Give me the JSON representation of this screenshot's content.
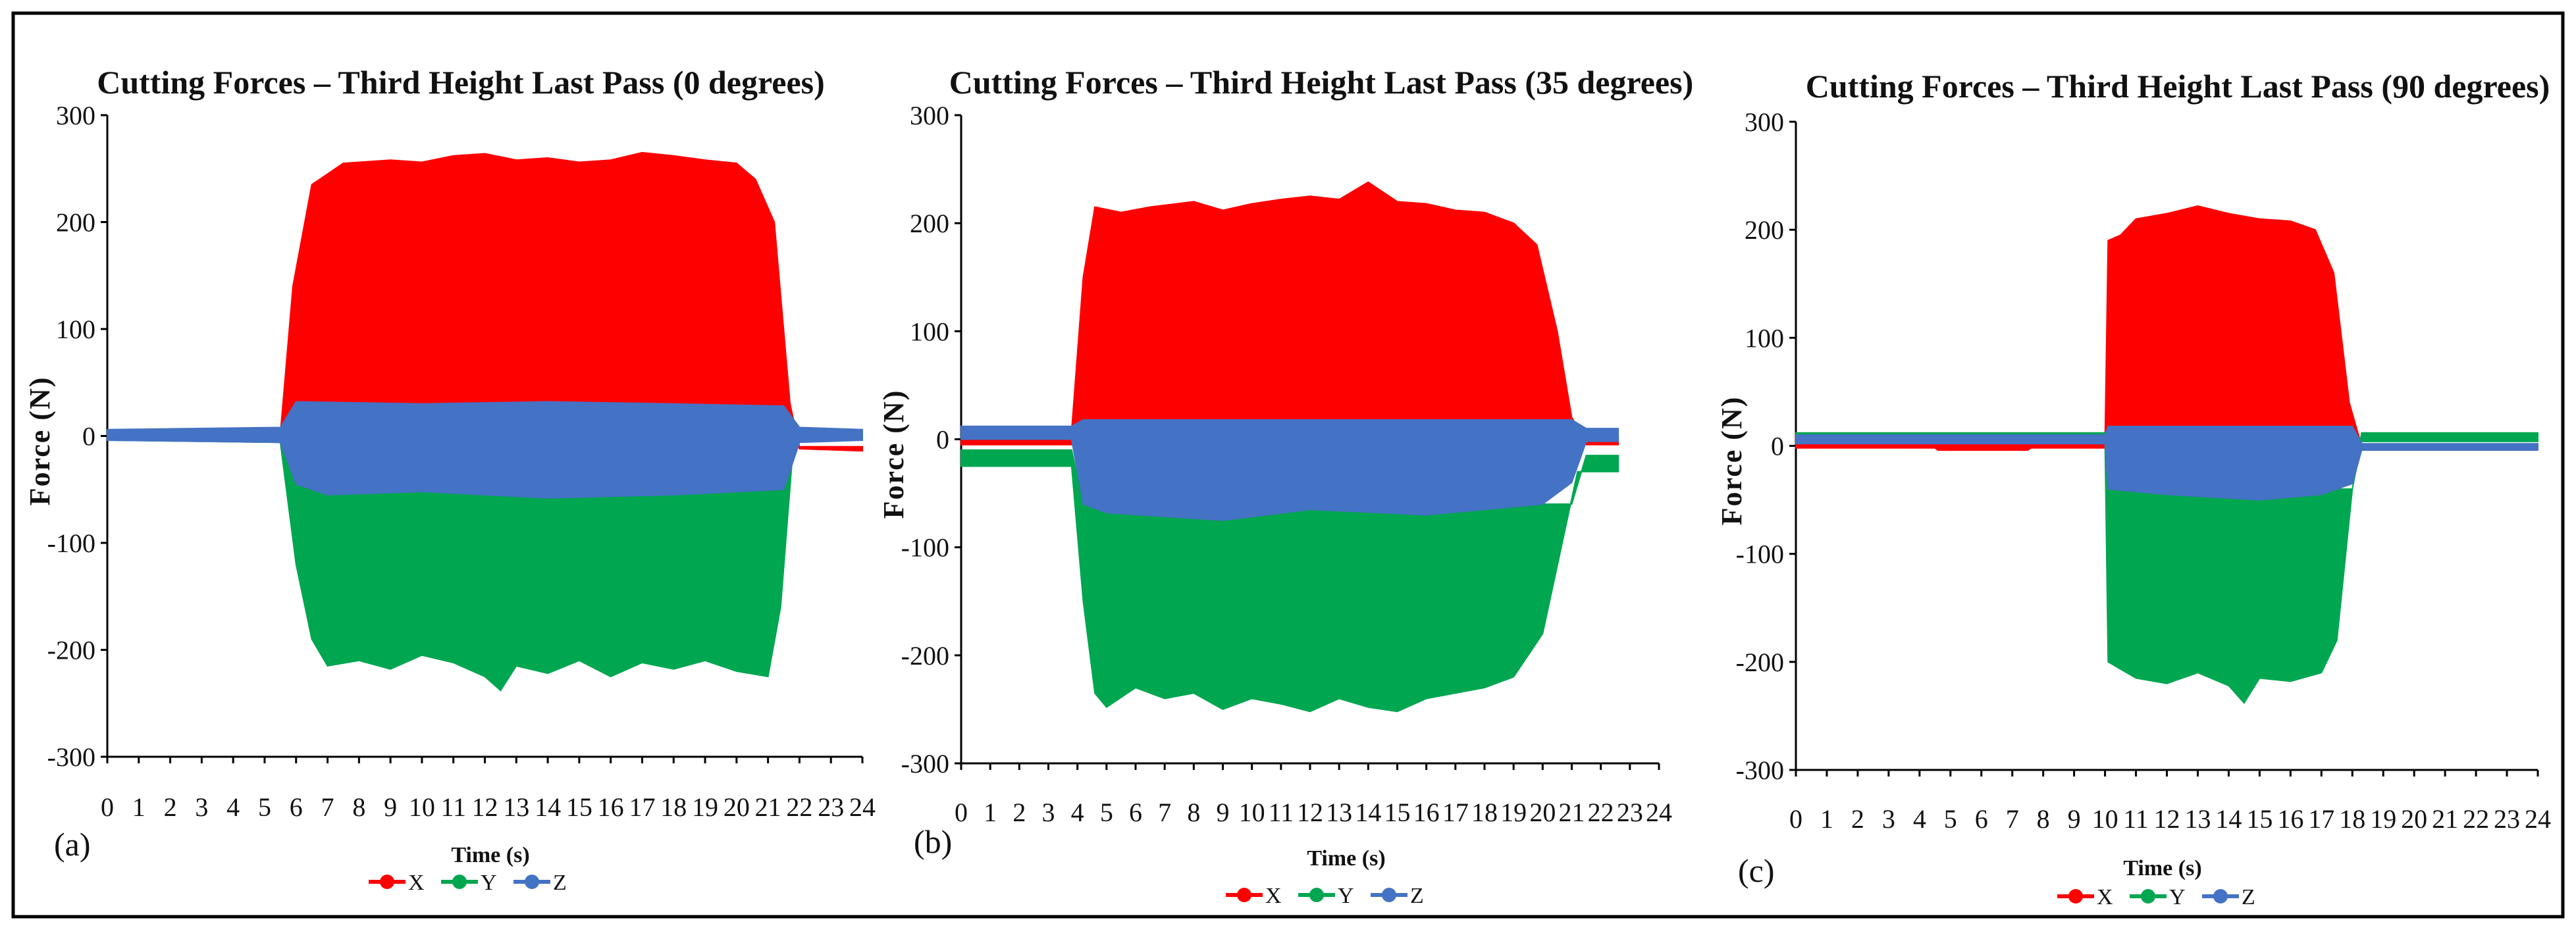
{
  "figure": {
    "colors": {
      "X": "#ff0000",
      "Y": "#00a650",
      "Z": "#4472c4",
      "frame": "#000000"
    }
  },
  "chart_data": [
    {
      "type": "area",
      "panel_label": "(a)",
      "title": "Cutting Forces – Third Height Last Pass (0 degrees)",
      "xlabel": "Time (s)",
      "ylabel": "Force (N)",
      "xlim": [
        0,
        24
      ],
      "ylim": [
        -300,
        300
      ],
      "xticks": [
        "0",
        "1",
        "2",
        "3",
        "4",
        "5",
        "6",
        "7",
        "8",
        "9",
        "10",
        "11",
        "12",
        "13",
        "14",
        "15",
        "16",
        "17",
        "18",
        "19",
        "20",
        "21",
        "22",
        "23",
        "24"
      ],
      "yticks": [
        "300",
        "200",
        "100",
        "0",
        "-100",
        "-200",
        "-300"
      ],
      "legend": [
        "X",
        "Y",
        "Z"
      ],
      "grid": false,
      "series": [
        {
          "name": "X",
          "upper": [
            [
              0,
              2
            ],
            [
              5.5,
              2
            ],
            [
              5.9,
              140
            ],
            [
              6.5,
              235
            ],
            [
              7.5,
              255
            ],
            [
              9,
              258
            ],
            [
              10,
              256
            ],
            [
              11,
              262
            ],
            [
              12,
              264
            ],
            [
              13,
              258
            ],
            [
              14,
              260
            ],
            [
              15,
              256
            ],
            [
              16,
              258
            ],
            [
              17,
              265
            ],
            [
              18,
              262
            ],
            [
              19,
              258
            ],
            [
              20,
              255
            ],
            [
              20.6,
              240
            ],
            [
              21.2,
              200
            ],
            [
              21.7,
              30
            ],
            [
              22,
              -10
            ],
            [
              24,
              -10
            ]
          ],
          "lower": [
            [
              0,
              -2
            ],
            [
              5.5,
              -6
            ],
            [
              6,
              20
            ],
            [
              21.5,
              20
            ],
            [
              22,
              -12
            ],
            [
              24,
              -14
            ]
          ]
        },
        {
          "name": "Y",
          "upper": [
            [
              0,
              2
            ],
            [
              5.5,
              2
            ],
            [
              6,
              -40
            ],
            [
              21.5,
              -40
            ],
            [
              22,
              2
            ],
            [
              24,
              2
            ]
          ],
          "lower": [
            [
              0,
              -4
            ],
            [
              5.5,
              -6
            ],
            [
              6,
              -120
            ],
            [
              6.5,
              -190
            ],
            [
              7,
              -215
            ],
            [
              8,
              -210
            ],
            [
              9,
              -218
            ],
            [
              10,
              -205
            ],
            [
              11,
              -212
            ],
            [
              12,
              -225
            ],
            [
              12.5,
              -238
            ],
            [
              13,
              -215
            ],
            [
              14,
              -222
            ],
            [
              15,
              -210
            ],
            [
              16,
              -225
            ],
            [
              17,
              -212
            ],
            [
              18,
              -218
            ],
            [
              19,
              -210
            ],
            [
              20,
              -220
            ],
            [
              21,
              -225
            ],
            [
              21.4,
              -160
            ],
            [
              21.8,
              -10
            ],
            [
              22,
              -4
            ],
            [
              24,
              -4
            ]
          ]
        },
        {
          "name": "Z",
          "upper": [
            [
              0,
              6
            ],
            [
              5.5,
              8
            ],
            [
              6,
              32
            ],
            [
              10,
              30
            ],
            [
              14,
              32
            ],
            [
              18,
              30
            ],
            [
              21.5,
              28
            ],
            [
              22,
              8
            ],
            [
              24,
              6
            ]
          ],
          "lower": [
            [
              0,
              -4
            ],
            [
              5.5,
              -6
            ],
            [
              6,
              -45
            ],
            [
              7,
              -55
            ],
            [
              10,
              -52
            ],
            [
              14,
              -58
            ],
            [
              18,
              -55
            ],
            [
              21.5,
              -50
            ],
            [
              22,
              -6
            ],
            [
              24,
              -4
            ]
          ]
        }
      ]
    },
    {
      "type": "area",
      "panel_label": "(b)",
      "title": "Cutting Forces – Third Height Last Pass (35 degrees)",
      "xlabel": "Time (s)",
      "ylabel": "Force (N)",
      "xlim": [
        0,
        24
      ],
      "ylim": [
        -300,
        300
      ],
      "xticks": [
        "0",
        "1",
        "2",
        "3",
        "4",
        "5",
        "6",
        "7",
        "8",
        "9",
        "10",
        "11",
        "12",
        "13",
        "14",
        "15",
        "16",
        "17",
        "18",
        "19",
        "20",
        "21",
        "22",
        "23",
        "24"
      ],
      "yticks": [
        "300",
        "200",
        "100",
        "0",
        "-100",
        "-200",
        "-300"
      ],
      "legend": [
        "X",
        "Y",
        "Z"
      ],
      "grid": false,
      "series": [
        {
          "name": "X",
          "upper": [
            [
              0,
              8
            ],
            [
              3.8,
              8
            ],
            [
              4.2,
              150
            ],
            [
              4.6,
              215
            ],
            [
              5.5,
              210
            ],
            [
              6.5,
              215
            ],
            [
              8,
              220
            ],
            [
              9,
              212
            ],
            [
              10,
              218
            ],
            [
              11,
              222
            ],
            [
              12,
              225
            ],
            [
              13,
              222
            ],
            [
              14,
              238
            ],
            [
              15,
              220
            ],
            [
              16,
              218
            ],
            [
              17,
              212
            ],
            [
              18,
              210
            ],
            [
              19,
              200
            ],
            [
              19.8,
              180
            ],
            [
              20.5,
              100
            ],
            [
              21,
              20
            ],
            [
              21.5,
              0
            ],
            [
              22.6,
              0
            ]
          ],
          "lower": [
            [
              0,
              -5
            ],
            [
              3.8,
              -5
            ],
            [
              4.2,
              15
            ],
            [
              21,
              15
            ],
            [
              21.5,
              -5
            ],
            [
              22.6,
              -5
            ]
          ]
        },
        {
          "name": "Y",
          "upper": [
            [
              0,
              -10
            ],
            [
              3.8,
              -10
            ],
            [
              4.2,
              -60
            ],
            [
              21,
              -60
            ],
            [
              21.5,
              -15
            ],
            [
              22.6,
              -15
            ]
          ],
          "lower": [
            [
              0,
              -25
            ],
            [
              3.8,
              -25
            ],
            [
              4.2,
              -150
            ],
            [
              4.6,
              -235
            ],
            [
              5,
              -248
            ],
            [
              6,
              -230
            ],
            [
              7,
              -240
            ],
            [
              8,
              -235
            ],
            [
              9,
              -250
            ],
            [
              10,
              -240
            ],
            [
              11,
              -245
            ],
            [
              12,
              -252
            ],
            [
              13,
              -240
            ],
            [
              14,
              -248
            ],
            [
              15,
              -252
            ],
            [
              16,
              -240
            ],
            [
              17,
              -235
            ],
            [
              18,
              -230
            ],
            [
              19,
              -220
            ],
            [
              20,
              -180
            ],
            [
              20.8,
              -80
            ],
            [
              21.2,
              -30
            ],
            [
              22.6,
              -30
            ]
          ]
        },
        {
          "name": "Z",
          "upper": [
            [
              0,
              12
            ],
            [
              3.8,
              12
            ],
            [
              4.2,
              18
            ],
            [
              21,
              18
            ],
            [
              21.5,
              10
            ],
            [
              22.6,
              10
            ]
          ],
          "lower": [
            [
              0,
              0
            ],
            [
              3.8,
              0
            ],
            [
              4.2,
              -60
            ],
            [
              5,
              -68
            ],
            [
              9,
              -75
            ],
            [
              12,
              -65
            ],
            [
              16,
              -70
            ],
            [
              20,
              -60
            ],
            [
              21,
              -40
            ],
            [
              21.5,
              -2
            ],
            [
              22.6,
              -2
            ]
          ]
        }
      ]
    },
    {
      "type": "area",
      "panel_label": "(c)",
      "title": "Cutting Forces – Third Height Last Pass (90 degrees)",
      "xlabel": "Time (s)",
      "ylabel": "Force (N)",
      "xlim": [
        0,
        24
      ],
      "ylim": [
        -300,
        300
      ],
      "xticks": [
        "0",
        "1",
        "2",
        "3",
        "4",
        "5",
        "6",
        "7",
        "8",
        "9",
        "10",
        "11",
        "12",
        "13",
        "14",
        "15",
        "16",
        "17",
        "18",
        "19",
        "20",
        "21",
        "22",
        "23",
        "24"
      ],
      "yticks": [
        "300",
        "200",
        "100",
        "0",
        "-100",
        "-200",
        "-300"
      ],
      "legend": [
        "X",
        "Y",
        "Z"
      ],
      "grid": false,
      "series": [
        {
          "name": "X",
          "upper": [
            [
              0,
              5
            ],
            [
              10,
              5
            ],
            [
              10.1,
              190
            ],
            [
              10.5,
              195
            ],
            [
              11,
              210
            ],
            [
              12,
              215
            ],
            [
              13,
              222
            ],
            [
              14,
              215
            ],
            [
              15,
              210
            ],
            [
              16,
              208
            ],
            [
              16.8,
              200
            ],
            [
              17.4,
              160
            ],
            [
              17.9,
              40
            ],
            [
              18.3,
              0
            ],
            [
              24,
              0
            ]
          ],
          "lower": [
            [
              0,
              -2
            ],
            [
              4.5,
              -2
            ],
            [
              4.6,
              -4
            ],
            [
              7.5,
              -4
            ],
            [
              7.6,
              -2
            ],
            [
              10,
              -2
            ],
            [
              10.1,
              15
            ],
            [
              18,
              15
            ],
            [
              18.3,
              -2
            ],
            [
              24,
              -2
            ]
          ]
        },
        {
          "name": "Y",
          "upper": [
            [
              0,
              12
            ],
            [
              10,
              12
            ],
            [
              10.1,
              -40
            ],
            [
              18,
              -40
            ],
            [
              18.3,
              12
            ],
            [
              24,
              12
            ]
          ],
          "lower": [
            [
              0,
              4
            ],
            [
              10,
              4
            ],
            [
              10.1,
              -200
            ],
            [
              11,
              -215
            ],
            [
              12,
              -220
            ],
            [
              13,
              -210
            ],
            [
              14,
              -222
            ],
            [
              14.5,
              -238
            ],
            [
              15,
              -215
            ],
            [
              16,
              -218
            ],
            [
              17,
              -210
            ],
            [
              17.5,
              -180
            ],
            [
              18,
              -40
            ],
            [
              18.3,
              4
            ],
            [
              24,
              4
            ]
          ]
        },
        {
          "name": "Z",
          "upper": [
            [
              0,
              10
            ],
            [
              10,
              10
            ],
            [
              10.1,
              18
            ],
            [
              18,
              18
            ],
            [
              18.3,
              2
            ],
            [
              24,
              2
            ]
          ],
          "lower": [
            [
              0,
              2
            ],
            [
              10,
              2
            ],
            [
              10.1,
              -40
            ],
            [
              12,
              -45
            ],
            [
              15,
              -50
            ],
            [
              17,
              -45
            ],
            [
              18,
              -35
            ],
            [
              18.3,
              -4
            ],
            [
              24,
              -4
            ]
          ]
        }
      ]
    }
  ]
}
